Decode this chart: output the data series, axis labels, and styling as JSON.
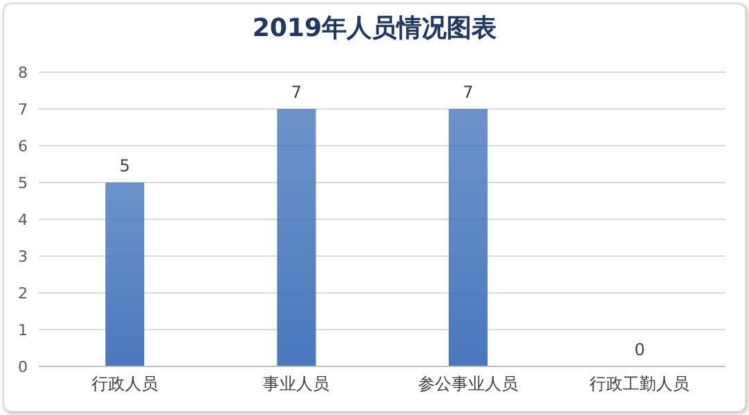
{
  "chart_data": {
    "type": "bar",
    "title": "2019年人员情况图表",
    "categories": [
      "行政人员",
      "事业人员",
      "参公事业人员",
      "行政工勤人员"
    ],
    "values": [
      5,
      7,
      7,
      0
    ],
    "color": "#4a78bd",
    "ylim": [
      0,
      8
    ],
    "yticks": [
      0,
      1,
      2,
      3,
      4,
      5,
      6,
      7,
      8
    ],
    "grid": "y",
    "data_labels": true
  }
}
